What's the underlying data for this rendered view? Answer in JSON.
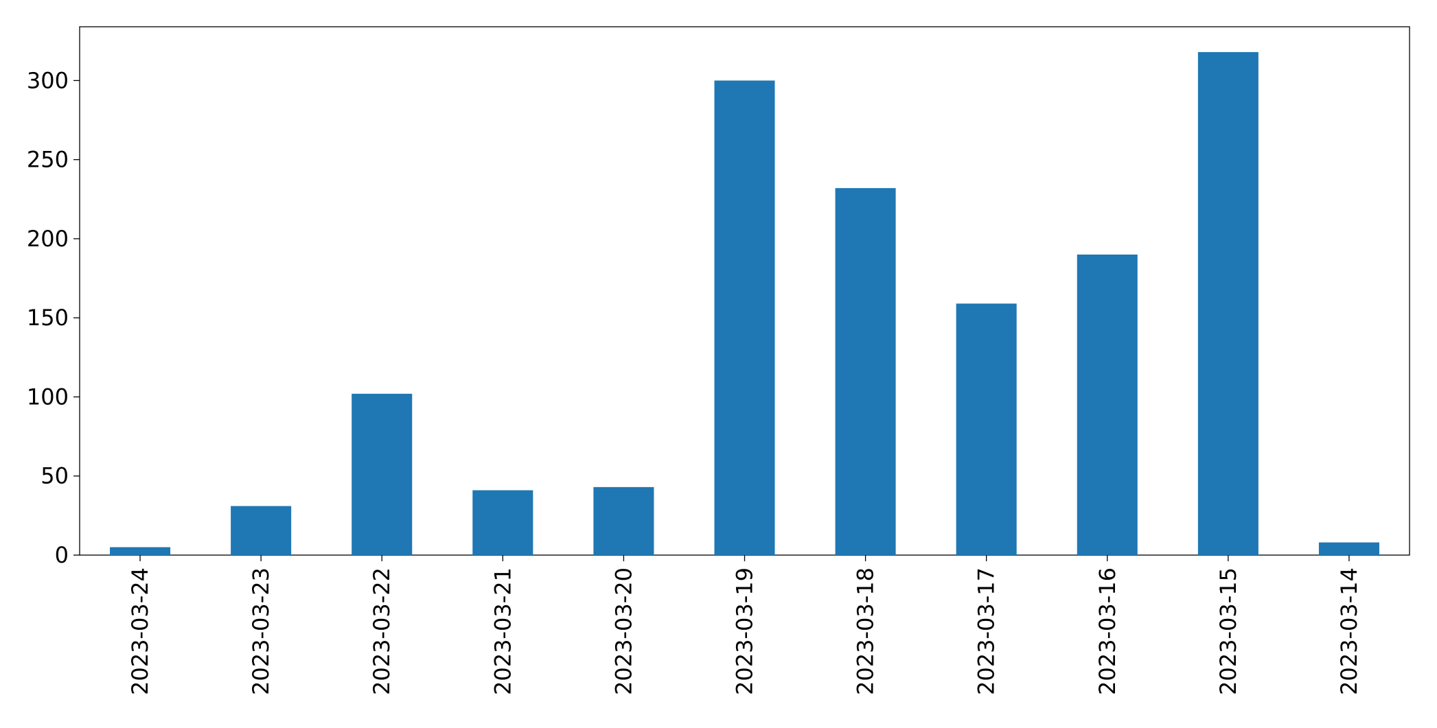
{
  "chart_data": {
    "type": "bar",
    "categories": [
      "2023-03-24",
      "2023-03-23",
      "2023-03-22",
      "2023-03-21",
      "2023-03-20",
      "2023-03-19",
      "2023-03-18",
      "2023-03-17",
      "2023-03-16",
      "2023-03-15",
      "2023-03-14"
    ],
    "values": [
      5,
      31,
      102,
      41,
      43,
      300,
      232,
      159,
      190,
      318,
      8
    ],
    "color": "#1f77b4",
    "ylim": [
      0,
      334
    ],
    "yticks": [
      0,
      50,
      100,
      150,
      200,
      250,
      300
    ],
    "grid": false
  }
}
